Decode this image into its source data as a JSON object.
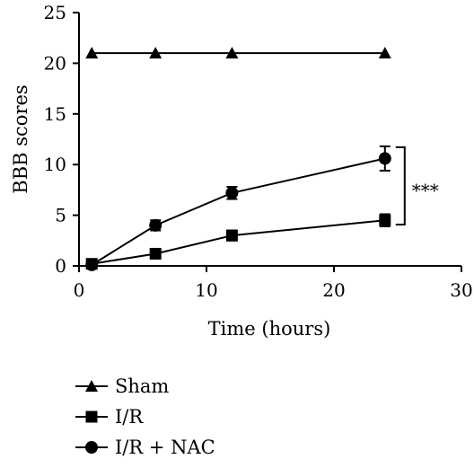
{
  "chart_data": {
    "type": "line",
    "title": "",
    "xlabel": "Time (hours)",
    "ylabel": "BBB scores",
    "xlim": [
      0,
      30
    ],
    "ylim": [
      0,
      25
    ],
    "xticks": [
      0,
      10,
      20,
      30
    ],
    "yticks": [
      0,
      5,
      10,
      15,
      20,
      25
    ],
    "grid": false,
    "legend_position": "bottom-left",
    "significance": {
      "label": "***",
      "between": [
        "I/R + NAC",
        "I/R"
      ],
      "x": 24
    },
    "series": [
      {
        "name": "Sham",
        "marker": "triangle",
        "x": [
          1,
          6,
          12,
          24
        ],
        "y": [
          21,
          21,
          21,
          21
        ],
        "error": [
          0,
          0,
          0,
          0
        ]
      },
      {
        "name": "I/R",
        "marker": "square",
        "x": [
          1,
          6,
          12,
          24
        ],
        "y": [
          0.2,
          1.2,
          3.0,
          4.5
        ],
        "error": [
          0,
          0.3,
          0.5,
          0.6
        ]
      },
      {
        "name": "I/R + NAC",
        "marker": "circle",
        "x": [
          1,
          6,
          12,
          24
        ],
        "y": [
          0.1,
          4.0,
          7.2,
          10.6
        ],
        "error": [
          0,
          0.5,
          0.6,
          1.2
        ]
      }
    ]
  }
}
